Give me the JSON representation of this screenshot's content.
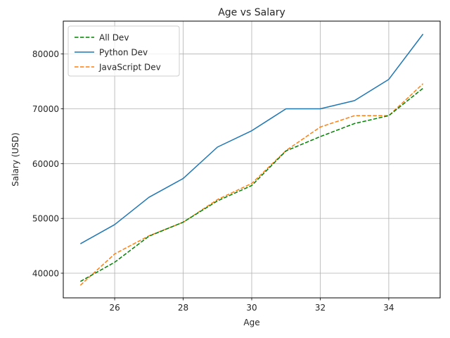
{
  "chart_data": {
    "type": "line",
    "title": "Age vs Salary",
    "xlabel": "Age",
    "ylabel": "Salary (USD)",
    "xlim": [
      24.5,
      35.5
    ],
    "ylim": [
      35500,
      86000
    ],
    "xticks": [
      26,
      28,
      30,
      32,
      34
    ],
    "yticks": [
      40000,
      50000,
      60000,
      70000,
      80000
    ],
    "grid": true,
    "legend_position": "top-left",
    "x": [
      25,
      26,
      27,
      28,
      29,
      30,
      31,
      32,
      33,
      34,
      35
    ],
    "series": [
      {
        "name": "All Dev",
        "color": "#008000",
        "style": "dashed",
        "values": [
          38496,
          42000,
          46752,
          49320,
          53200,
          56000,
          62316,
          64928,
          67317,
          68748,
          73752
        ]
      },
      {
        "name": "Python Dev",
        "color": "#1f77b4",
        "style": "solid",
        "values": [
          45372,
          48876,
          53850,
          57287,
          63016,
          65998,
          70003,
          70000,
          71496,
          75370,
          83640
        ]
      },
      {
        "name": "JavaScript Dev",
        "color": "#ff7f0e",
        "style": "dashed",
        "values": [
          37810,
          43515,
          46823,
          49293,
          53437,
          56373,
          62375,
          66674,
          68745,
          68746,
          74583
        ]
      }
    ]
  }
}
